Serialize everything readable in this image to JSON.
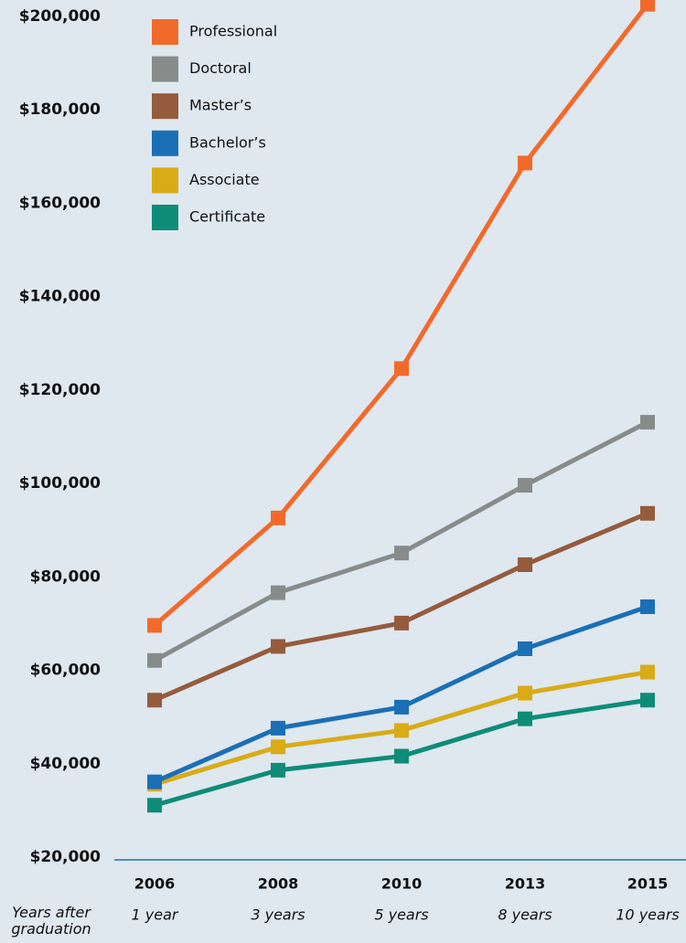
{
  "chart_data": {
    "type": "line",
    "categories": [
      "2006",
      "2008",
      "2010",
      "2013",
      "2015"
    ],
    "secondary_categories": [
      "1 year",
      "3 years",
      "5 years",
      "8 years",
      "10 years"
    ],
    "secondary_axis_title": "Years after graduation",
    "series": [
      {
        "name": "Professional",
        "color": "#f26a2a",
        "values": [
          70000,
          93000,
          125000,
          169000,
          203000
        ]
      },
      {
        "name": "Doctoral",
        "color": "#878c8b",
        "values": [
          62500,
          77000,
          85500,
          100000,
          113500
        ]
      },
      {
        "name": "Master’s",
        "color": "#955b3d",
        "values": [
          54000,
          65500,
          70500,
          83000,
          94000
        ]
      },
      {
        "name": "Bachelor’s",
        "color": "#1b6fb5",
        "values": [
          36500,
          48000,
          52500,
          65000,
          74000
        ]
      },
      {
        "name": "Associate",
        "color": "#d8ab17",
        "values": [
          36000,
          44000,
          47500,
          55500,
          60000
        ]
      },
      {
        "name": "Certificate",
        "color": "#0e8c78",
        "values": [
          31500,
          39000,
          42000,
          50000,
          54000
        ]
      }
    ],
    "ylim": [
      20000,
      200000
    ],
    "yticks": [
      {
        "value": 20000,
        "label": "$20,000"
      },
      {
        "value": 40000,
        "label": "$40,000"
      },
      {
        "value": 60000,
        "label": "$60,000"
      },
      {
        "value": 80000,
        "label": "$80,000"
      },
      {
        "value": 100000,
        "label": "$100,000"
      },
      {
        "value": 120000,
        "label": "$120,000"
      },
      {
        "value": 140000,
        "label": "$140,000"
      },
      {
        "value": 160000,
        "label": "$160,000"
      },
      {
        "value": 180000,
        "label": "$180,000"
      },
      {
        "value": 200000,
        "label": "$200,000"
      }
    ],
    "grid": false,
    "legend": "top-left"
  }
}
